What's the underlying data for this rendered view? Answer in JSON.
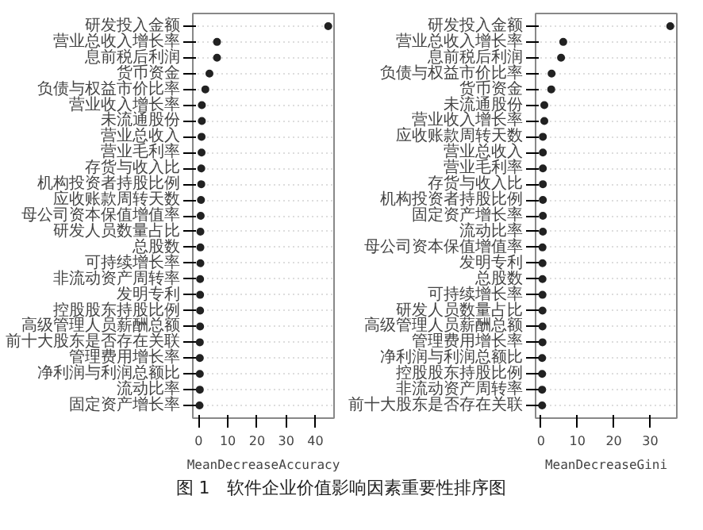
{
  "chart_data": [
    {
      "type": "scatter",
      "orientation": "horizontal",
      "xlabel": "MeanDecreaseAccuracy",
      "categories": [
        "研发投入金额",
        "营业总收入增长率",
        "息前税后利润",
        "货币资金",
        "负债与权益市价比率",
        "营业收入增长率",
        "未流通股份",
        "营业总收入",
        "营业毛利率",
        "存货与收入比",
        "机构投资者持股比例",
        "应收账款周转天数",
        "母公司资本保值增值率",
        "研发人员数量占比",
        "总股数",
        "可持续增长率",
        "非流动资产周转率",
        "发明专利",
        "控股股东持股比例",
        "高级管理人员薪酬总额",
        "前十大股东是否存在关联",
        "管理费用增长率",
        "净利润与利润总额比",
        "流动比率",
        "固定资产增长率"
      ],
      "values": [
        44.4,
        6.3,
        6.3,
        3.7,
        2.3,
        1.1,
        1.1,
        1.0,
        1.0,
        0.9,
        0.9,
        0.8,
        0.7,
        0.6,
        0.6,
        0.6,
        0.5,
        0.5,
        0.5,
        0.5,
        0.4,
        0.4,
        0.4,
        0.4,
        0.3
      ],
      "color": "#222222",
      "marker": "circle",
      "xlim": [
        -2,
        46.4
      ],
      "xticks": [
        0,
        10,
        20,
        30,
        40
      ],
      "grid": "y",
      "annotations": [
        "图 1　软件企业价值影响因素重要性排序图"
      ]
    },
    {
      "type": "scatter",
      "orientation": "horizontal",
      "xlabel": "MeanDecreaseGini",
      "categories": [
        "研发投入金额",
        "营业总收入增长率",
        "息前税后利润",
        "负债与权益市价比率",
        "货币资金",
        "未流通股份",
        "营业收入增长率",
        "应收账款周转天数",
        "营业总收入",
        "营业毛利率",
        "存货与收入比",
        "机构投资者持股比例",
        "固定资产增长率",
        "流动比率",
        "母公司资本保值增值率",
        "发明专利",
        "总股数",
        "可持续增长率",
        "研发人员数量占比",
        "高级管理人员薪酬总额",
        "管理费用增长率",
        "净利润与利润总额比",
        "控股股东持股比例",
        "非流动资产周转率",
        "前十大股东是否存在关联"
      ],
      "values": [
        35.5,
        6.1,
        5.5,
        2.9,
        2.8,
        0.9,
        0.9,
        0.5,
        0.5,
        0.5,
        0.5,
        0.5,
        0.5,
        0.5,
        0.4,
        0.4,
        0.4,
        0.4,
        0.4,
        0.4,
        0.4,
        0.3,
        0.3,
        0.3,
        0.3
      ],
      "color": "#222222",
      "marker": "circle",
      "xlim": [
        -1.5,
        37.3
      ],
      "xticks": [
        0,
        10,
        20,
        30
      ],
      "grid": "y"
    }
  ]
}
